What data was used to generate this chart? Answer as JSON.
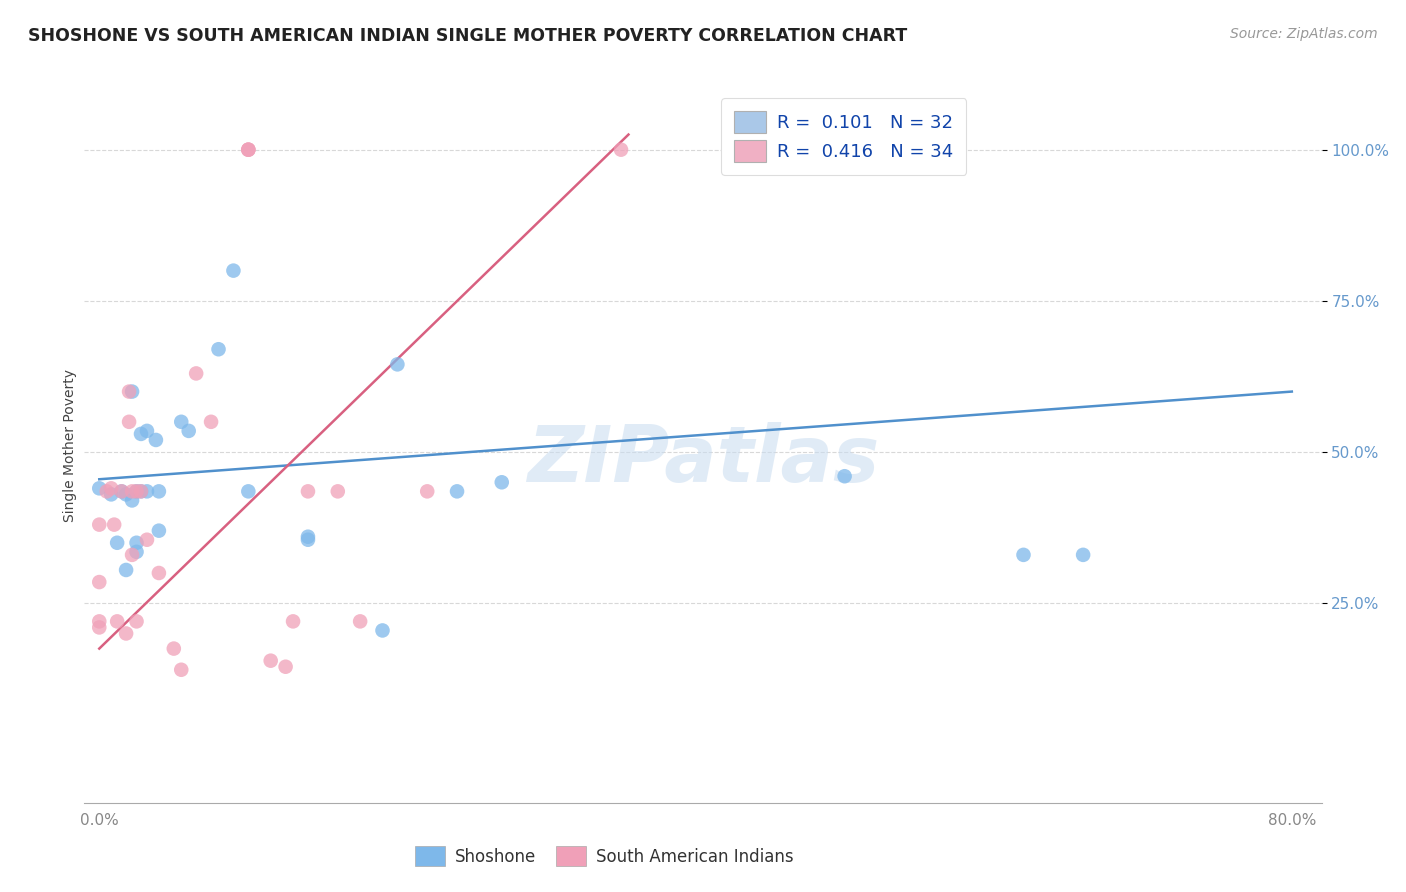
{
  "title": "SHOSHONE VS SOUTH AMERICAN INDIAN SINGLE MOTHER POVERTY CORRELATION CHART",
  "source": "Source: ZipAtlas.com",
  "ylabel": "Single Mother Poverty",
  "ytick_labels": [
    "100.0%",
    "75.0%",
    "50.0%",
    "25.0%"
  ],
  "ytick_vals": [
    1.0,
    0.75,
    0.5,
    0.25
  ],
  "xlim": [
    -0.01,
    0.82
  ],
  "ylim": [
    -0.08,
    1.1
  ],
  "legend_label1": "R =  0.101   N = 32",
  "legend_label2": "R =  0.416   N = 34",
  "legend_color1": "#aac8e8",
  "legend_color2": "#f0b0c4",
  "grid_color": "#d8d8d8",
  "watermark": "ZIPatlas",
  "shoshone_color": "#7EB8EA",
  "sai_color": "#F0A0B8",
  "shoshone_x": [
    0.0,
    0.008,
    0.012,
    0.015,
    0.018,
    0.018,
    0.022,
    0.022,
    0.025,
    0.025,
    0.025,
    0.028,
    0.028,
    0.032,
    0.032,
    0.038,
    0.04,
    0.04,
    0.055,
    0.06,
    0.08,
    0.09,
    0.1,
    0.14,
    0.14,
    0.19,
    0.2,
    0.24,
    0.27,
    0.5,
    0.62,
    0.66
  ],
  "shoshone_y": [
    0.44,
    0.43,
    0.35,
    0.435,
    0.43,
    0.305,
    0.6,
    0.42,
    0.435,
    0.35,
    0.335,
    0.53,
    0.435,
    0.535,
    0.435,
    0.52,
    0.435,
    0.37,
    0.55,
    0.535,
    0.67,
    0.8,
    0.435,
    0.36,
    0.355,
    0.205,
    0.645,
    0.435,
    0.45,
    0.46,
    0.33,
    0.33
  ],
  "sai_x": [
    0.0,
    0.0,
    0.0,
    0.0,
    0.005,
    0.008,
    0.01,
    0.012,
    0.015,
    0.018,
    0.02,
    0.02,
    0.022,
    0.022,
    0.025,
    0.025,
    0.028,
    0.032,
    0.04,
    0.05,
    0.055,
    0.065,
    0.075,
    0.1,
    0.1,
    0.1,
    0.115,
    0.125,
    0.13,
    0.14,
    0.16,
    0.175,
    0.22,
    0.35
  ],
  "sai_y": [
    0.38,
    0.22,
    0.285,
    0.21,
    0.435,
    0.44,
    0.38,
    0.22,
    0.435,
    0.2,
    0.6,
    0.55,
    0.435,
    0.33,
    0.435,
    0.22,
    0.435,
    0.355,
    0.3,
    0.175,
    0.14,
    0.63,
    0.55,
    1.0,
    1.0,
    1.0,
    0.155,
    0.145,
    0.22,
    0.435,
    0.435,
    0.22,
    0.435,
    1.0
  ],
  "blue_line_x0": 0.0,
  "blue_line_x1": 0.8,
  "blue_line_y0": 0.455,
  "blue_line_y1": 0.6,
  "pink_line_x0": 0.0,
  "pink_line_x1": 0.355,
  "pink_line_y0": 0.175,
  "pink_line_y1": 1.025,
  "shoshone_label": "Shoshone",
  "sai_label": "South American Indians"
}
